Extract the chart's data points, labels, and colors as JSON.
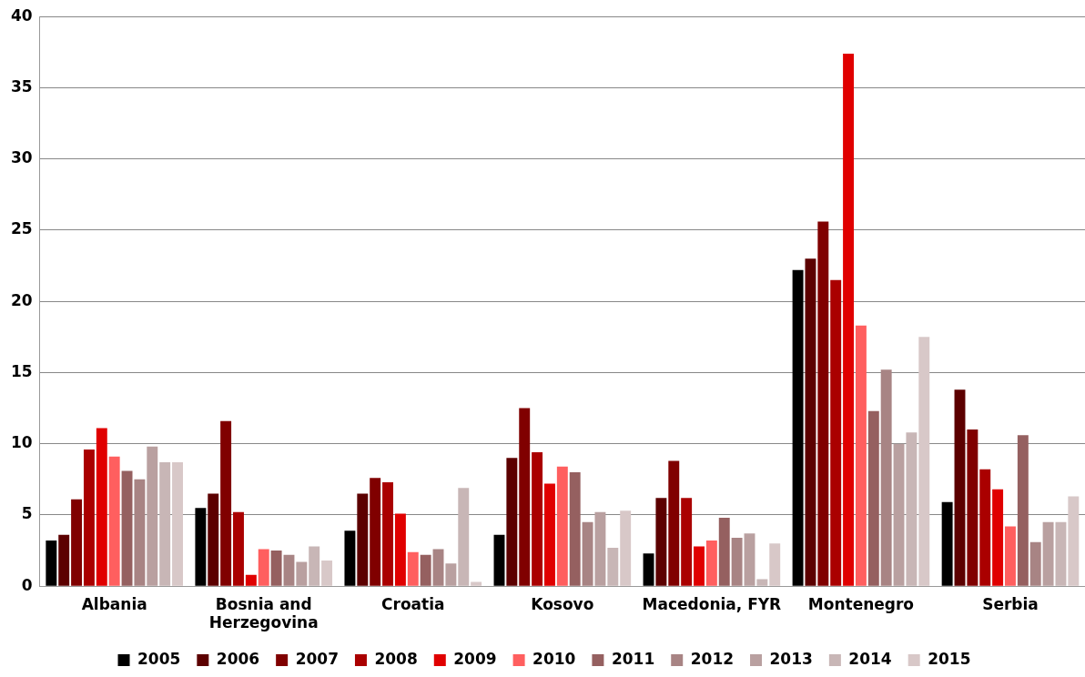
{
  "chart_data": {
    "type": "bar",
    "categories": [
      "Albania",
      "Bosnia and Herzegovina",
      "Croatia",
      "Kosovo",
      "Macedonia, FYR",
      "Montenegro",
      "Serbia"
    ],
    "series": [
      {
        "name": "2005",
        "color": "#000000",
        "values": [
          3.2,
          5.5,
          3.9,
          3.6,
          2.3,
          22.2,
          5.9
        ]
      },
      {
        "name": "2006",
        "color": "#5c0000",
        "values": [
          3.6,
          6.5,
          6.5,
          9.0,
          6.2,
          23.0,
          13.8
        ]
      },
      {
        "name": "2007",
        "color": "#800000",
        "values": [
          6.1,
          11.6,
          7.6,
          12.5,
          8.8,
          25.6,
          11.0
        ]
      },
      {
        "name": "2008",
        "color": "#aa0000",
        "values": [
          9.6,
          5.2,
          7.3,
          9.4,
          6.2,
          21.5,
          8.2
        ]
      },
      {
        "name": "2009",
        "color": "#e00000",
        "values": [
          11.1,
          0.8,
          5.1,
          7.2,
          2.8,
          37.4,
          6.8
        ]
      },
      {
        "name": "2010",
        "color": "#ff5f5f",
        "values": [
          9.1,
          2.6,
          2.4,
          8.4,
          3.2,
          18.3,
          4.2
        ]
      },
      {
        "name": "2011",
        "color": "#956060",
        "values": [
          8.1,
          2.5,
          2.2,
          8.0,
          4.8,
          12.3,
          10.6
        ]
      },
      {
        "name": "2012",
        "color": "#a88484",
        "values": [
          7.5,
          2.2,
          2.6,
          4.5,
          3.4,
          15.2,
          3.1
        ]
      },
      {
        "name": "2013",
        "color": "#b9a0a0",
        "values": [
          9.8,
          1.7,
          1.6,
          5.2,
          3.7,
          10.0,
          4.5
        ]
      },
      {
        "name": "2014",
        "color": "#c8b6b6",
        "values": [
          8.7,
          2.8,
          6.9,
          2.7,
          0.5,
          10.8,
          4.5
        ]
      },
      {
        "name": "2015",
        "color": "#d8c8c8",
        "values": [
          8.7,
          1.8,
          0.3,
          5.3,
          3.0,
          17.5,
          6.3
        ]
      }
    ],
    "ylim": [
      0,
      40
    ],
    "yticks": [
      0,
      5,
      10,
      15,
      20,
      25,
      30,
      35,
      40
    ],
    "grid": "y",
    "legend": "bottom"
  }
}
